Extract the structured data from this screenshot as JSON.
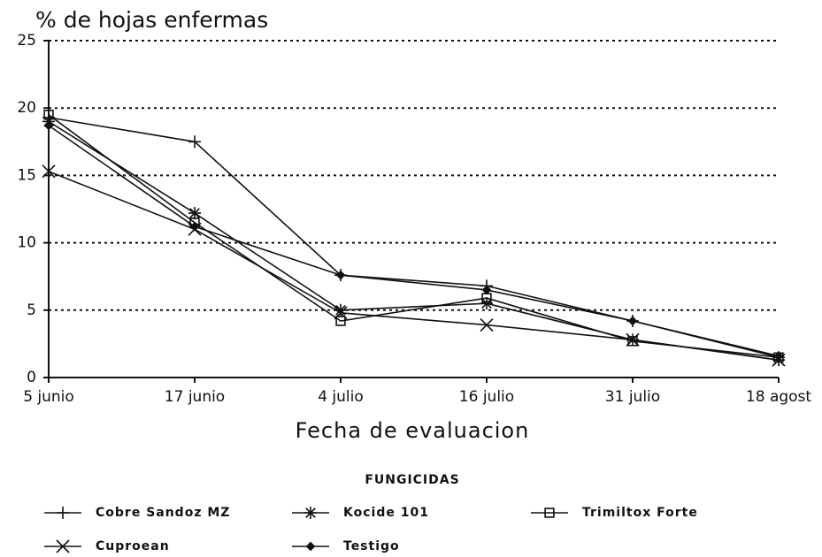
{
  "chart_data": {
    "type": "line",
    "title": "% de hojas enfermas",
    "x_label": "Fecha de evaluacion",
    "legend_title": "FUNGICIDAS",
    "categories": [
      "5 junio",
      "17 junio",
      "4 julio",
      "16 julio",
      "31 julio",
      "18 agost"
    ],
    "series": [
      {
        "name": "Cobre Sandoz MZ",
        "color": "#111111",
        "marker": "plus",
        "values": [
          19.3,
          17.5,
          7.6,
          6.8,
          4.2,
          1.5
        ]
      },
      {
        "name": "Kocide 101",
        "color": "#111111",
        "marker": "asterisk",
        "values": [
          19.0,
          12.2,
          5.0,
          5.5,
          2.8,
          1.3
        ]
      },
      {
        "name": "Trimiltox Forte",
        "color": "#111111",
        "marker": "square",
        "values": [
          19.5,
          11.5,
          4.2,
          5.9,
          2.7,
          1.5
        ]
      },
      {
        "name": "Cuproean",
        "color": "#111111",
        "marker": "x",
        "values": [
          15.3,
          11.0,
          4.8,
          3.9,
          2.8,
          1.3
        ]
      },
      {
        "name": "Testigo",
        "color": "#111111",
        "marker": "diamond",
        "values": [
          18.7,
          11.2,
          7.6,
          6.5,
          4.2,
          1.6
        ]
      }
    ],
    "ylim": [
      0,
      25
    ],
    "yticks": [
      0,
      5,
      10,
      15,
      20,
      25
    ],
    "grid": true
  }
}
